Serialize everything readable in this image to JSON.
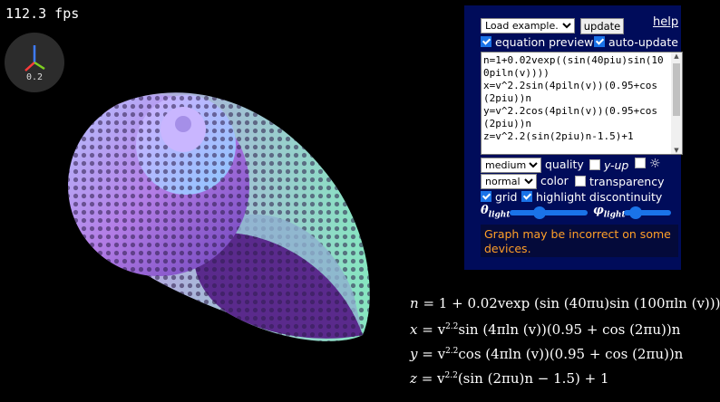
{
  "fps": "112.3 fps",
  "gizmo": {
    "scale": "0.2"
  },
  "panel": {
    "example_select": "Load example...",
    "update_label": "update",
    "help_label": "help",
    "equation_preview_label": "equation preview",
    "auto_update_label": "auto-update",
    "equations_text": "n=1+0.02vexp((sin(40piu)sin(100piln(v))))\nx=v^2.2sin(4piln(v))(0.95+cos(2piu))n\ny=v^2.2cos(4piln(v))(0.95+cos(2piu))n\nz=v^2.2(sin(2piu)n-1.5)+1",
    "quality_value": "medium",
    "quality_label": "quality",
    "yup_label": "y-up",
    "sun_icon_glyph": "☼",
    "color_value": "normal",
    "color_label": "color",
    "transparency_label": "transparency",
    "grid_label": "grid",
    "highlight_label": "highlight discontinuity",
    "theta_label": "θ",
    "phi_label": "φ",
    "light_sub": "light",
    "warning": "Graph may be incorrect on some devices."
  },
  "checkboxes": {
    "equation_preview": true,
    "auto_update": true,
    "yup": false,
    "sun": false,
    "transparency": false,
    "grid": true,
    "highlight": true
  },
  "sliders": {
    "theta_light": 0.38,
    "phi_light": 0.25
  },
  "colors": {
    "panel_bg": "#000c5a",
    "accent": "#1a73e8",
    "warning": "#ff9f28"
  },
  "equations_rendered": {
    "n": {
      "lhs": "n",
      "rhs": "= 1 + 0.02vexp (sin (40πu)sin (100πln (v)))"
    },
    "x": {
      "lhs": "x",
      "rhs_a": "= v",
      "exp": "2.2",
      "rhs_b": "sin (4πln (v))(0.95 + cos (2πu))n"
    },
    "y": {
      "lhs": "y",
      "rhs_a": "= v",
      "exp": "2.2",
      "rhs_b": "cos (4πln (v))(0.95 + cos (2πu))n"
    },
    "z": {
      "lhs": "z",
      "rhs_a": "= v",
      "exp": "2.2",
      "rhs_b": "(sin (2πu)n − 1.5) + 1"
    }
  }
}
